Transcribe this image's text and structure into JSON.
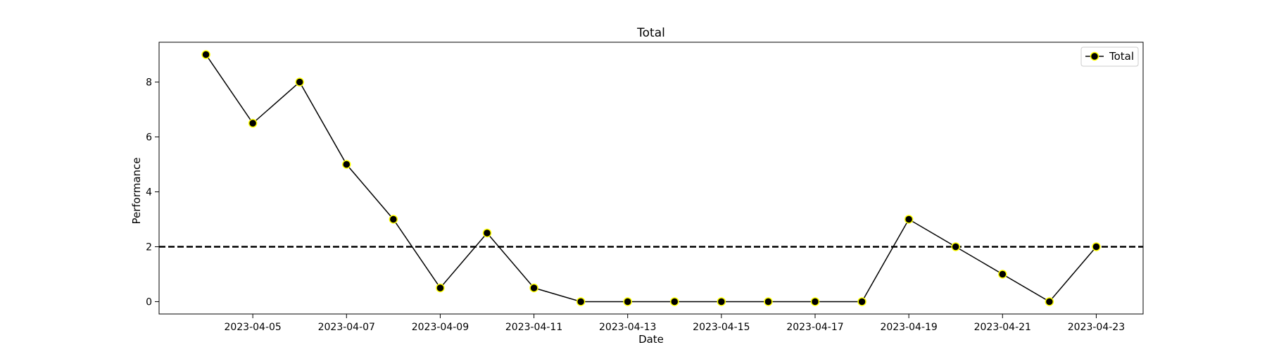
{
  "chart_data": {
    "type": "line",
    "title": "Total",
    "xlabel": "Date",
    "ylabel": "Performance",
    "x": [
      "2023-04-04",
      "2023-04-05",
      "2023-04-06",
      "2023-04-07",
      "2023-04-08",
      "2023-04-09",
      "2023-04-10",
      "2023-04-11",
      "2023-04-12",
      "2023-04-13",
      "2023-04-14",
      "2023-04-15",
      "2023-04-16",
      "2023-04-17",
      "2023-04-18",
      "2023-04-19",
      "2023-04-20",
      "2023-04-21",
      "2023-04-22",
      "2023-04-23"
    ],
    "series": [
      {
        "name": "Total",
        "values": [
          9,
          6.5,
          8,
          5,
          3,
          0.5,
          2.5,
          0.5,
          0,
          0,
          0,
          0,
          0,
          0,
          0,
          3,
          2,
          1,
          0,
          2
        ],
        "line_color": "#000000",
        "marker_face": "#000000",
        "marker_edge": "#ffff00"
      }
    ],
    "reference_line": {
      "y": 2,
      "style": "dashed",
      "color": "#000000"
    },
    "xticks": [
      "2023-04-05",
      "2023-04-07",
      "2023-04-09",
      "2023-04-11",
      "2023-04-13",
      "2023-04-15",
      "2023-04-17",
      "2023-04-19",
      "2023-04-21",
      "2023-04-23"
    ],
    "yticks": [
      0,
      2,
      4,
      6,
      8
    ],
    "xlim": [
      "2023-04-03",
      "2023-04-24"
    ],
    "ylim": [
      -0.45,
      9.45
    ],
    "grid": false,
    "legend_position": "top-right"
  }
}
